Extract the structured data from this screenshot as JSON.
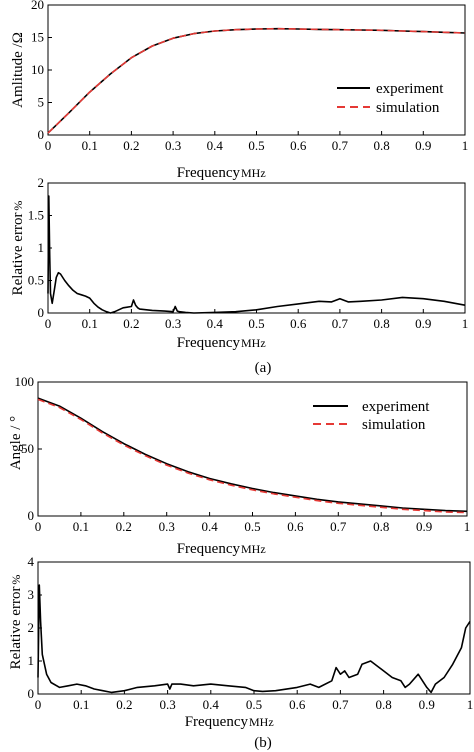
{
  "chart_data": [
    {
      "type": "line",
      "panel": "a-top",
      "xlabel": "Frequency",
      "xunit": "MHz",
      "ylabel": "Amlitude /Ω",
      "xlim": [
        0,
        1
      ],
      "ylim": [
        0,
        20
      ],
      "xticks": [
        "0",
        "0.1",
        "0.2",
        "0.3",
        "0.4",
        "0.5",
        "0.6",
        "0.7",
        "0.8",
        "0.9",
        "1"
      ],
      "yticks": [
        "0",
        "5",
        "10",
        "15",
        "20"
      ],
      "legend": "right",
      "series": [
        {
          "name": "experiment",
          "color": "#000000",
          "style": "solid",
          "x": [
            0,
            0.05,
            0.1,
            0.15,
            0.2,
            0.25,
            0.3,
            0.35,
            0.4,
            0.45,
            0.5,
            0.55,
            0.6,
            0.65,
            0.7,
            0.75,
            0.8,
            0.85,
            0.9,
            0.95,
            1.0
          ],
          "y": [
            0.3,
            3.4,
            6.6,
            9.4,
            11.9,
            13.7,
            14.9,
            15.6,
            16.0,
            16.2,
            16.3,
            16.35,
            16.3,
            16.25,
            16.2,
            16.15,
            16.1,
            16.0,
            15.9,
            15.8,
            15.7
          ]
        },
        {
          "name": "simulation",
          "color": "#e53935",
          "style": "dashed",
          "x": [
            0,
            0.05,
            0.1,
            0.15,
            0.2,
            0.25,
            0.3,
            0.35,
            0.4,
            0.45,
            0.5,
            0.55,
            0.6,
            0.65,
            0.7,
            0.75,
            0.8,
            0.85,
            0.9,
            0.95,
            1.0
          ],
          "y": [
            0.3,
            3.4,
            6.6,
            9.4,
            11.9,
            13.7,
            14.9,
            15.6,
            16.0,
            16.2,
            16.3,
            16.35,
            16.3,
            16.25,
            16.2,
            16.15,
            16.1,
            16.0,
            15.9,
            15.8,
            15.7
          ]
        }
      ]
    },
    {
      "type": "line",
      "panel": "a-bottom",
      "xlabel": "Frequency",
      "xunit": "MHz",
      "ylabel": "Relative error",
      "yunit": "%",
      "xlim": [
        0,
        1
      ],
      "ylim": [
        0,
        2
      ],
      "xticks": [
        "0",
        "0.1",
        "0.2",
        "0.3",
        "0.4",
        "0.5",
        "0.6",
        "0.7",
        "0.8",
        "0.9",
        "1"
      ],
      "yticks": [
        "0",
        "0.5",
        "1",
        "1.5",
        "2"
      ],
      "series": [
        {
          "color": "#000000",
          "style": "solid",
          "x": [
            0,
            0.002,
            0.004,
            0.006,
            0.01,
            0.015,
            0.02,
            0.025,
            0.03,
            0.04,
            0.05,
            0.06,
            0.07,
            0.08,
            0.09,
            0.1,
            0.11,
            0.12,
            0.13,
            0.14,
            0.15,
            0.16,
            0.18,
            0.2,
            0.205,
            0.21,
            0.215,
            0.22,
            0.25,
            0.28,
            0.3,
            0.305,
            0.31,
            0.315,
            0.33,
            0.35,
            0.4,
            0.45,
            0.5,
            0.55,
            0.6,
            0.65,
            0.68,
            0.7,
            0.72,
            0.75,
            0.8,
            0.85,
            0.9,
            0.95,
            1.0
          ],
          "y": [
            0.3,
            1.8,
            0.9,
            0.3,
            0.15,
            0.35,
            0.55,
            0.62,
            0.6,
            0.5,
            0.42,
            0.35,
            0.3,
            0.28,
            0.26,
            0.23,
            0.15,
            0.09,
            0.05,
            0.02,
            0.0,
            0.02,
            0.08,
            0.1,
            0.2,
            0.12,
            0.08,
            0.06,
            0.04,
            0.03,
            0.02,
            0.1,
            0.03,
            0.02,
            0.01,
            0.0,
            0.01,
            0.02,
            0.05,
            0.1,
            0.14,
            0.18,
            0.17,
            0.22,
            0.17,
            0.18,
            0.2,
            0.24,
            0.22,
            0.18,
            0.12
          ]
        }
      ]
    },
    {
      "type": "line",
      "panel": "b-top",
      "xlabel": "Frequency",
      "xunit": "MHz",
      "ylabel": "Angle / °",
      "xlim": [
        0,
        1
      ],
      "ylim": [
        0,
        100
      ],
      "xticks": [
        "0",
        "0.1",
        "0.2",
        "0.3",
        "0.4",
        "0.5",
        "0.6",
        "0.7",
        "0.8",
        "0.9",
        "1"
      ],
      "yticks": [
        "0",
        "50",
        "100"
      ],
      "legend": "top-right",
      "series": [
        {
          "name": "experiment",
          "color": "#000000",
          "style": "solid",
          "x": [
            0,
            0.05,
            0.1,
            0.15,
            0.2,
            0.25,
            0.3,
            0.35,
            0.4,
            0.45,
            0.5,
            0.55,
            0.6,
            0.65,
            0.7,
            0.75,
            0.8,
            0.85,
            0.9,
            0.95,
            1.0
          ],
          "y": [
            88,
            82,
            73,
            63,
            54,
            46,
            39,
            33,
            28,
            24,
            20.5,
            17.5,
            15,
            12.5,
            10.5,
            9,
            7.5,
            6,
            5,
            4,
            3.5
          ]
        },
        {
          "name": "simulation",
          "color": "#e53935",
          "style": "dashed",
          "x": [
            0,
            0.05,
            0.1,
            0.15,
            0.2,
            0.25,
            0.3,
            0.35,
            0.4,
            0.45,
            0.5,
            0.55,
            0.6,
            0.65,
            0.7,
            0.75,
            0.8,
            0.85,
            0.9,
            0.95,
            1.0
          ],
          "y": [
            87,
            81,
            72,
            62,
            53,
            45,
            38,
            32,
            27,
            23,
            19.5,
            16.5,
            14,
            11.5,
            9.5,
            8,
            6.5,
            5,
            4,
            3,
            2.5
          ]
        }
      ]
    },
    {
      "type": "line",
      "panel": "b-bottom",
      "xlabel": "Frequency",
      "xunit": "MHz",
      "ylabel": "Relative error",
      "yunit": "%",
      "xlim": [
        0,
        1
      ],
      "ylim": [
        0,
        4
      ],
      "xticks": [
        "0",
        "0.1",
        "0.2",
        "0.3",
        "0.4",
        "0.5",
        "0.6",
        "0.7",
        "0.8",
        "0.9",
        "1"
      ],
      "yticks": [
        "0",
        "1",
        "2",
        "3",
        "4"
      ],
      "series": [
        {
          "color": "#000000",
          "style": "solid",
          "x": [
            0,
            0.003,
            0.006,
            0.01,
            0.02,
            0.03,
            0.05,
            0.07,
            0.09,
            0.11,
            0.13,
            0.15,
            0.17,
            0.2,
            0.23,
            0.27,
            0.3,
            0.305,
            0.31,
            0.33,
            0.36,
            0.4,
            0.44,
            0.48,
            0.5,
            0.52,
            0.55,
            0.6,
            0.63,
            0.65,
            0.68,
            0.69,
            0.7,
            0.71,
            0.72,
            0.74,
            0.75,
            0.77,
            0.79,
            0.8,
            0.82,
            0.84,
            0.85,
            0.86,
            0.88,
            0.9,
            0.91,
            0.92,
            0.94,
            0.96,
            0.98,
            0.99,
            1.0
          ],
          "y": [
            0.5,
            3.3,
            2.2,
            1.2,
            0.6,
            0.35,
            0.2,
            0.25,
            0.3,
            0.25,
            0.15,
            0.1,
            0.05,
            0.1,
            0.2,
            0.25,
            0.3,
            0.15,
            0.3,
            0.3,
            0.25,
            0.3,
            0.25,
            0.2,
            0.1,
            0.08,
            0.1,
            0.2,
            0.3,
            0.2,
            0.4,
            0.8,
            0.6,
            0.7,
            0.5,
            0.6,
            0.9,
            1.0,
            0.8,
            0.7,
            0.5,
            0.4,
            0.2,
            0.3,
            0.6,
            0.2,
            0.05,
            0.3,
            0.5,
            0.9,
            1.4,
            2.0,
            2.2
          ]
        }
      ]
    }
  ],
  "captions": [
    "(a)",
    "(b)"
  ]
}
